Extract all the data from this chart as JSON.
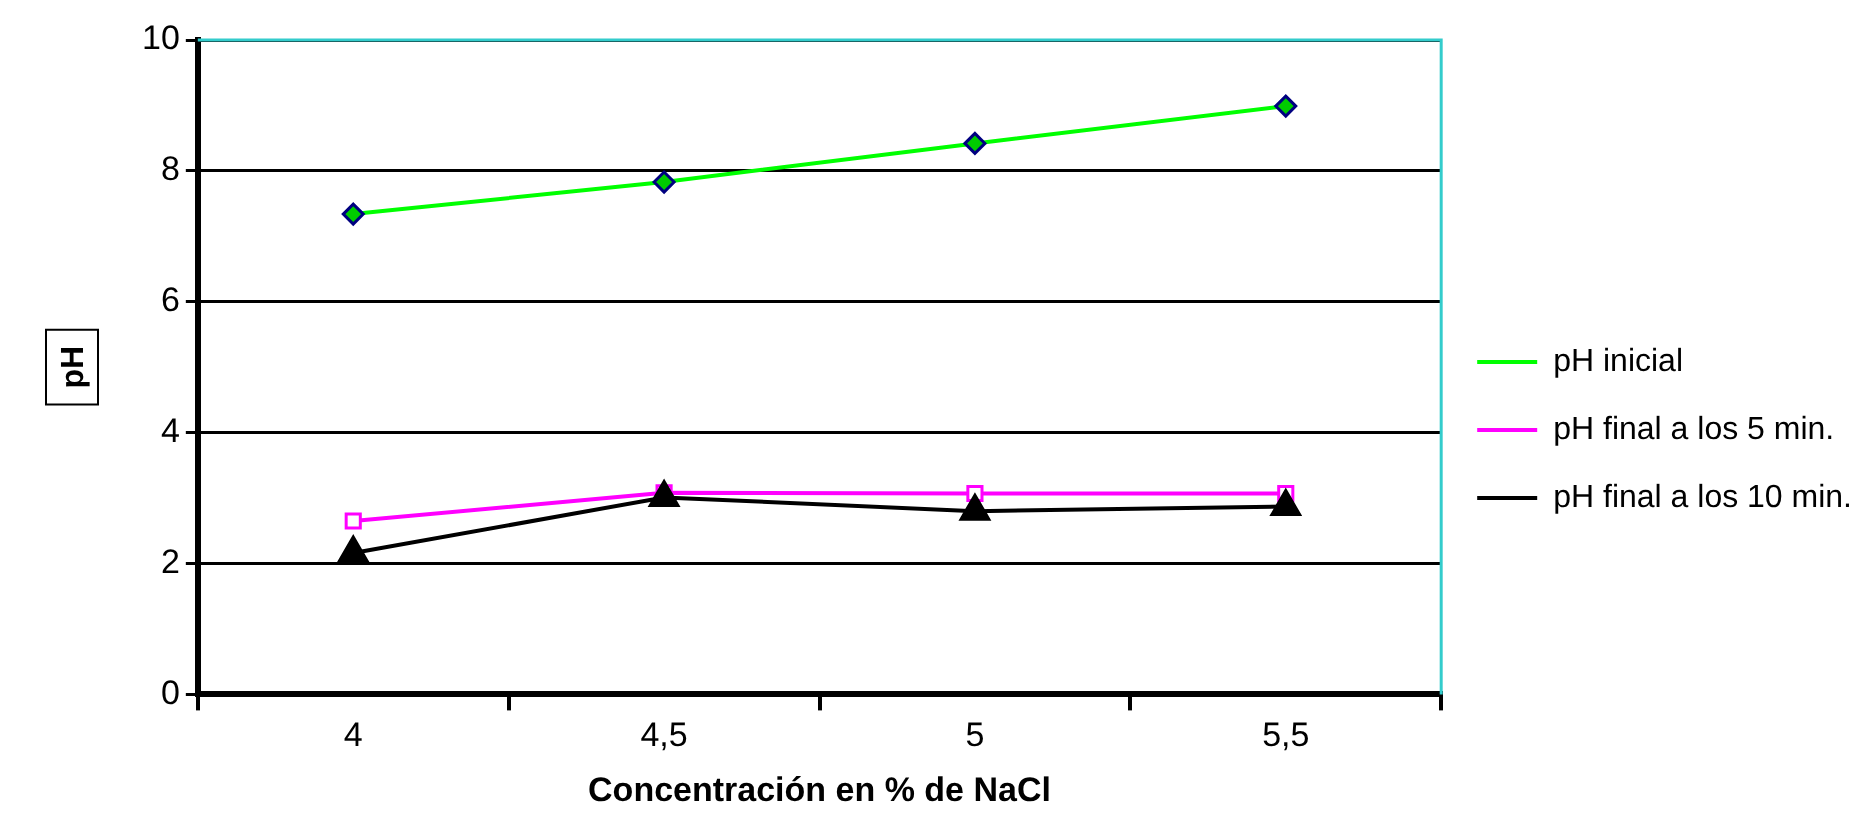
{
  "chart_data": {
    "type": "line",
    "xlabel": "Concentración en % de NaCl",
    "ylabel": "pH",
    "categories": [
      "4",
      "4,5",
      "5",
      "5,5"
    ],
    "series": [
      {
        "name": "pH inicial",
        "color": "#00ff00",
        "marker": "diamond",
        "values": [
          7.34,
          7.83,
          8.42,
          8.99
        ]
      },
      {
        "name": "pH final a los 5 min.",
        "color": "#ff00ff",
        "marker": "square",
        "values": [
          2.65,
          3.08,
          3.07,
          3.07
        ]
      },
      {
        "name": "pH final a los 10 min.",
        "color": "#000000",
        "marker": "triangle",
        "values": [
          2.16,
          3.01,
          2.8,
          2.87
        ]
      }
    ],
    "ylim": [
      0,
      10
    ],
    "yticks": [
      0,
      2,
      4,
      6,
      8,
      10
    ],
    "grid": "y",
    "legend": "right",
    "line_style": "solid"
  }
}
